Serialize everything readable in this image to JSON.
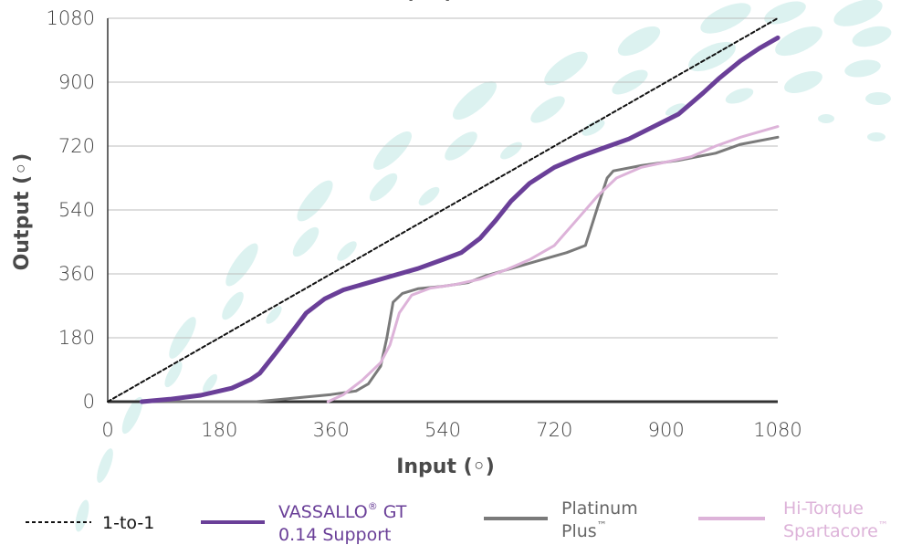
{
  "chart_data": {
    "type": "line",
    "title": "(…°) …",
    "xlabel": "Input (◦)",
    "ylabel": "Output (◦)",
    "xlim": [
      0,
      1080
    ],
    "ylim": [
      0,
      1080
    ],
    "x_ticks": [
      "0",
      "180",
      "360",
      "540",
      "720",
      "900",
      "1080"
    ],
    "y_ticks": [
      "0",
      "180",
      "360",
      "540",
      "720",
      "900",
      "1080"
    ],
    "grid": "horizontal",
    "legend": "bottom",
    "series": [
      {
        "name": "1-to-1",
        "color": "#111111",
        "dashed": true,
        "width": 2,
        "points": [
          [
            0,
            0
          ],
          [
            1080,
            1080
          ]
        ]
      },
      {
        "name": "VASSALLO",
        "legend_label_line1": "VASSALLO",
        "legend_label_sup": "®",
        "legend_label_line1_rest": " GT",
        "legend_label_line2": "0.14 Support",
        "color": "#6a3f98",
        "width": 5,
        "points": [
          [
            55,
            0
          ],
          [
            100,
            7
          ],
          [
            150,
            18
          ],
          [
            200,
            38
          ],
          [
            230,
            62
          ],
          [
            245,
            80
          ],
          [
            270,
            135
          ],
          [
            305,
            215
          ],
          [
            320,
            250
          ],
          [
            350,
            290
          ],
          [
            380,
            315
          ],
          [
            410,
            330
          ],
          [
            450,
            350
          ],
          [
            500,
            375
          ],
          [
            540,
            400
          ],
          [
            570,
            420
          ],
          [
            600,
            460
          ],
          [
            625,
            510
          ],
          [
            650,
            565
          ],
          [
            680,
            615
          ],
          [
            720,
            660
          ],
          [
            760,
            690
          ],
          [
            800,
            715
          ],
          [
            840,
            740
          ],
          [
            880,
            775
          ],
          [
            920,
            810
          ],
          [
            960,
            870
          ],
          [
            985,
            910
          ],
          [
            1020,
            960
          ],
          [
            1050,
            995
          ],
          [
            1080,
            1025
          ]
        ]
      },
      {
        "name": "Platinum Plus",
        "legend_label_line1": "Platinum",
        "legend_label_line2": "Plus",
        "legend_label_sup": "™",
        "color": "#7a7a7a",
        "width": 3,
        "points": [
          [
            55,
            0
          ],
          [
            240,
            0
          ],
          [
            300,
            10
          ],
          [
            360,
            20
          ],
          [
            400,
            30
          ],
          [
            420,
            50
          ],
          [
            440,
            100
          ],
          [
            450,
            180
          ],
          [
            460,
            280
          ],
          [
            475,
            305
          ],
          [
            500,
            318
          ],
          [
            540,
            325
          ],
          [
            580,
            335
          ],
          [
            610,
            355
          ],
          [
            650,
            375
          ],
          [
            700,
            400
          ],
          [
            740,
            420
          ],
          [
            770,
            440
          ],
          [
            790,
            550
          ],
          [
            805,
            630
          ],
          [
            815,
            650
          ],
          [
            860,
            665
          ],
          [
            920,
            680
          ],
          [
            980,
            700
          ],
          [
            1020,
            725
          ],
          [
            1080,
            745
          ]
        ]
      },
      {
        "name": "Hi-Torque Spartacore",
        "legend_label_line1": "Hi-Torque",
        "legend_label_line2": "Spartacore",
        "legend_label_sup": "™",
        "color": "#ddb3d9",
        "width": 3,
        "points": [
          [
            355,
            0
          ],
          [
            380,
            20
          ],
          [
            410,
            60
          ],
          [
            440,
            110
          ],
          [
            455,
            160
          ],
          [
            470,
            250
          ],
          [
            490,
            300
          ],
          [
            520,
            320
          ],
          [
            560,
            330
          ],
          [
            600,
            345
          ],
          [
            640,
            370
          ],
          [
            680,
            400
          ],
          [
            720,
            440
          ],
          [
            760,
            520
          ],
          [
            790,
            580
          ],
          [
            820,
            630
          ],
          [
            860,
            660
          ],
          [
            900,
            675
          ],
          [
            940,
            690
          ],
          [
            980,
            720
          ],
          [
            1020,
            745
          ],
          [
            1080,
            775
          ]
        ]
      }
    ]
  }
}
